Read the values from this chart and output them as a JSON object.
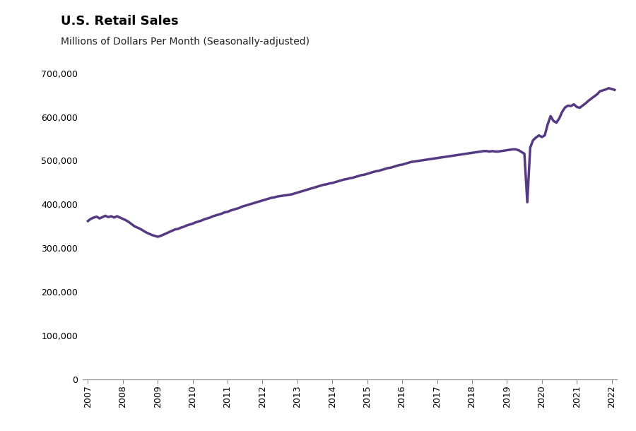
{
  "title": "U.S. Retail Sales",
  "subtitle": "Millions of Dollars Per Month (Seasonally-adjusted)",
  "line_color": "#553982",
  "line_width": 2.5,
  "ylim": [
    0,
    700000
  ],
  "yticks": [
    0,
    100000,
    200000,
    300000,
    400000,
    500000,
    600000,
    700000
  ],
  "background_color": "#ffffff",
  "x_start_year": 2007,
  "x_end_year": 2022,
  "title_fontsize": 13,
  "subtitle_fontsize": 10,
  "tick_fontsize": 9,
  "monthly_data": [
    362000,
    367000,
    370000,
    372000,
    368000,
    371000,
    374000,
    371000,
    373000,
    370000,
    373000,
    370000,
    367000,
    364000,
    360000,
    355000,
    350000,
    347000,
    344000,
    340000,
    336000,
    333000,
    330000,
    328000,
    326000,
    328000,
    331000,
    334000,
    337000,
    340000,
    343000,
    344000,
    347000,
    349000,
    352000,
    354000,
    356000,
    359000,
    361000,
    363000,
    366000,
    368000,
    370000,
    373000,
    375000,
    377000,
    379000,
    382000,
    383000,
    386000,
    388000,
    390000,
    392000,
    395000,
    397000,
    399000,
    401000,
    403000,
    405000,
    407000,
    409000,
    411000,
    413000,
    415000,
    416000,
    418000,
    419000,
    420000,
    421000,
    422000,
    423000,
    425000,
    427000,
    429000,
    431000,
    433000,
    435000,
    437000,
    439000,
    441000,
    443000,
    445000,
    446000,
    448000,
    449000,
    451000,
    453000,
    455000,
    457000,
    458000,
    460000,
    461000,
    463000,
    465000,
    467000,
    468000,
    470000,
    472000,
    474000,
    476000,
    477000,
    479000,
    481000,
    483000,
    484000,
    486000,
    488000,
    490000,
    491000,
    493000,
    495000,
    497000,
    498000,
    499000,
    500000,
    501000,
    502000,
    503000,
    504000,
    505000,
    506000,
    507000,
    508000,
    509000,
    510000,
    511000,
    512000,
    513000,
    514000,
    515000,
    516000,
    517000,
    518000,
    519000,
    520000,
    521000,
    522000,
    522000,
    521000,
    522000,
    521000,
    521000,
    522000,
    523000,
    524000,
    525000,
    526000,
    526000,
    524000,
    520000,
    516000,
    405000,
    530000,
    547000,
    553000,
    558000,
    554000,
    558000,
    583000,
    602000,
    591000,
    587000,
    597000,
    612000,
    622000,
    626000,
    625000,
    629000,
    623000,
    621000,
    626000,
    631000,
    637000,
    642000,
    647000,
    652000,
    659000,
    661000,
    663000,
    666000,
    664000,
    662000
  ]
}
